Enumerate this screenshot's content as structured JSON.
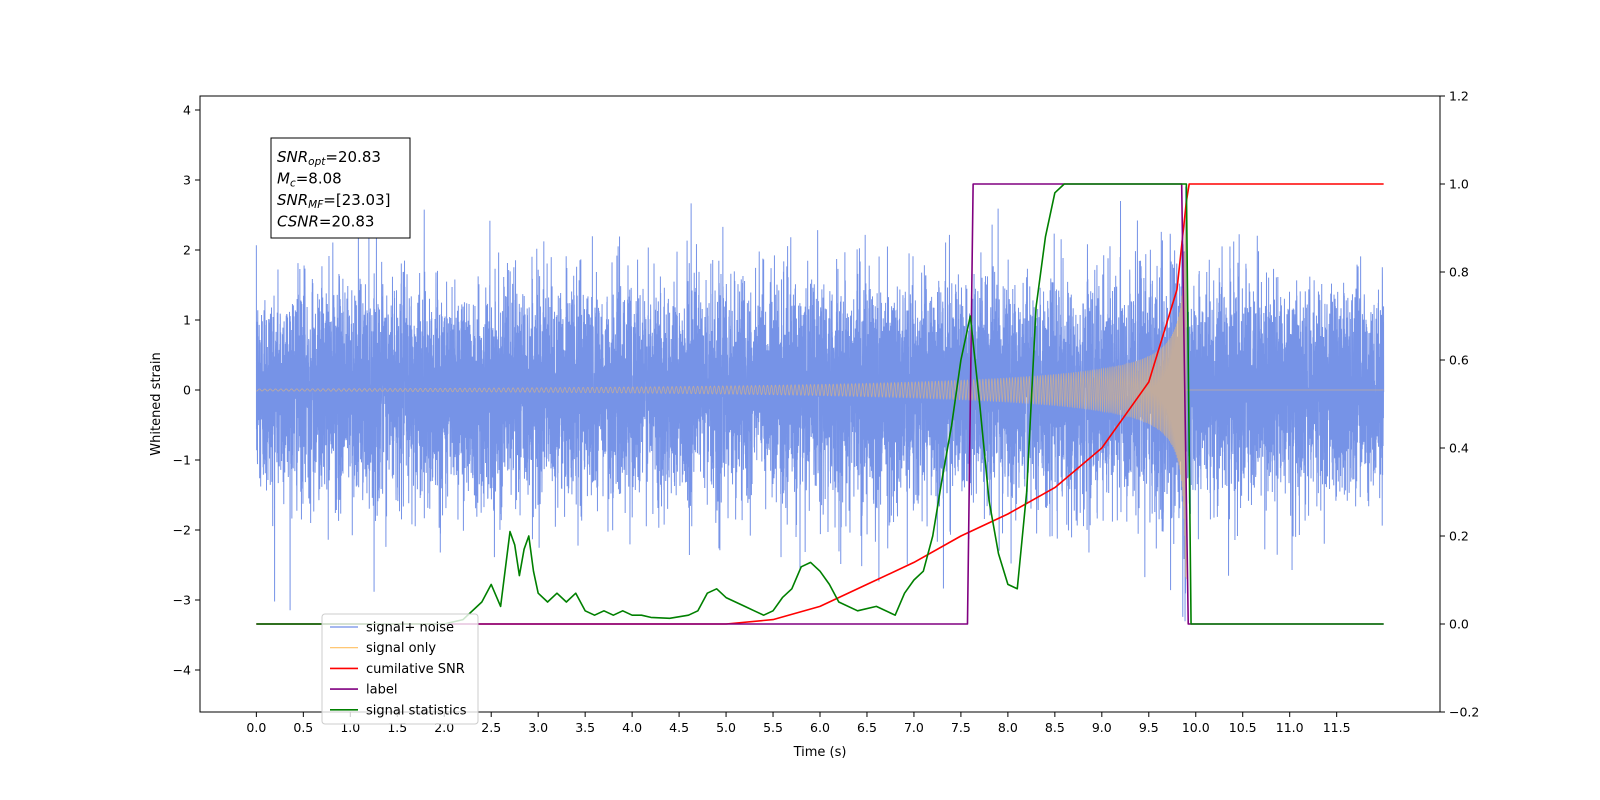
{
  "chart_data": {
    "type": "line",
    "xlabel": "Time (s)",
    "ylabel": "Whitened strain",
    "xlim": [
      -0.6,
      12.6
    ],
    "ylim": [
      -4.6,
      4.2
    ],
    "y2lim": [
      -0.2,
      1.2
    ],
    "x_ticks": [
      "0.0",
      "0.5",
      "1.0",
      "1.5",
      "2.0",
      "2.5",
      "3.0",
      "3.5",
      "4.0",
      "4.5",
      "5.0",
      "5.5",
      "6.0",
      "6.5",
      "7.0",
      "7.5",
      "8.0",
      "8.5",
      "9.0",
      "9.5",
      "10.0",
      "10.5",
      "11.0",
      "11.5"
    ],
    "y_ticks": [
      "−4",
      "−3",
      "−2",
      "−1",
      "0",
      "1",
      "2",
      "3",
      "4"
    ],
    "y2_ticks": [
      "−0.2",
      "0.0",
      "0.2",
      "0.4",
      "0.6",
      "0.8",
      "1.0",
      "1.2"
    ],
    "annotations": [
      {
        "sym": "SNR",
        "sub": "opt",
        "rest": "=20.83"
      },
      {
        "sym": "M",
        "sub": "c",
        "rest": "=8.08"
      },
      {
        "sym": "SNR",
        "sub": "MF",
        "rest": "=[23.03]"
      },
      {
        "sym": "CSNR",
        "sub": "",
        "rest": "=20.83"
      }
    ],
    "legend_placement": "lower-left",
    "series": [
      {
        "name": "signal+ noise",
        "color": "#6f8de6",
        "axis": "left",
        "description_values": {
          "noise_sigma": 0.75,
          "x_start": 0.0,
          "x_end": 12.0
        }
      },
      {
        "name": "signal only",
        "color": "#ffbf60",
        "axis": "left",
        "chirp": {
          "t_start": 0.0,
          "t_merge": 9.9,
          "peak_amp": 2.7
        }
      },
      {
        "name": "cumilative SNR",
        "color": "#ff0000",
        "axis": "right",
        "x": [
          0,
          5.0,
          5.5,
          6.0,
          6.5,
          7.0,
          7.5,
          8.0,
          8.5,
          9.0,
          9.5,
          9.8,
          9.9,
          9.93,
          12.0
        ],
        "y": [
          0,
          0,
          0.01,
          0.04,
          0.09,
          0.14,
          0.2,
          0.25,
          0.31,
          0.4,
          0.55,
          0.76,
          0.96,
          1.0,
          1.0
        ]
      },
      {
        "name": "label",
        "color": "#800080",
        "axis": "right",
        "x": [
          0,
          7.57,
          7.63,
          9.85,
          9.92,
          12.0
        ],
        "y": [
          0,
          0,
          1,
          1,
          0,
          0
        ]
      },
      {
        "name": "signal statistics",
        "color": "#008000",
        "axis": "right",
        "x": [
          0,
          2.0,
          2.2,
          2.4,
          2.5,
          2.6,
          2.7,
          2.75,
          2.8,
          2.85,
          2.9,
          2.95,
          3.0,
          3.1,
          3.2,
          3.3,
          3.4,
          3.5,
          3.6,
          3.7,
          3.8,
          3.9,
          4.0,
          4.1,
          4.2,
          4.4,
          4.6,
          4.7,
          4.8,
          4.9,
          5.0,
          5.1,
          5.2,
          5.3,
          5.4,
          5.5,
          5.6,
          5.7,
          5.8,
          5.9,
          6.0,
          6.1,
          6.2,
          6.4,
          6.6,
          6.8,
          6.9,
          7.0,
          7.1,
          7.2,
          7.3,
          7.4,
          7.5,
          7.6,
          7.7,
          7.8,
          7.9,
          8.0,
          8.1,
          8.2,
          8.3,
          8.4,
          8.5,
          8.6,
          8.7,
          9.0,
          9.5,
          9.9,
          9.95,
          12.0
        ],
        "y": [
          0,
          0,
          0.01,
          0.05,
          0.09,
          0.04,
          0.21,
          0.18,
          0.11,
          0.17,
          0.2,
          0.12,
          0.07,
          0.05,
          0.07,
          0.05,
          0.07,
          0.03,
          0.02,
          0.03,
          0.02,
          0.03,
          0.02,
          0.02,
          0.015,
          0.013,
          0.02,
          0.03,
          0.07,
          0.08,
          0.06,
          0.05,
          0.04,
          0.03,
          0.02,
          0.03,
          0.06,
          0.08,
          0.13,
          0.14,
          0.12,
          0.09,
          0.05,
          0.03,
          0.04,
          0.02,
          0.07,
          0.1,
          0.12,
          0.2,
          0.33,
          0.45,
          0.6,
          0.7,
          0.5,
          0.28,
          0.16,
          0.09,
          0.08,
          0.3,
          0.72,
          0.88,
          0.98,
          1.0,
          1.0,
          1.0,
          1.0,
          1.0,
          0.0,
          0.0
        ]
      }
    ]
  }
}
